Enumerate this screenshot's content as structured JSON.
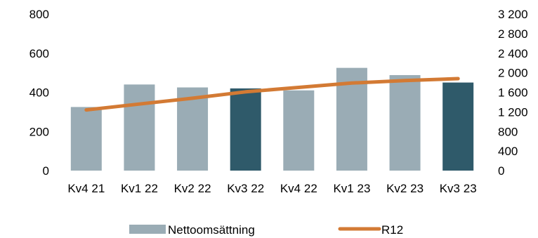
{
  "chart_data": {
    "type": "bar",
    "categories": [
      "Kv4 21",
      "Kv1 22",
      "Kv2 22",
      "Kv3 22",
      "Kv4 22",
      "Kv1 23",
      "Kv2 23",
      "Kv3 23"
    ],
    "series": [
      {
        "name": "Nettoomsättning",
        "type": "bar",
        "axis": "left",
        "values": [
          325,
          440,
          425,
          420,
          410,
          525,
          488,
          450
        ],
        "colors": [
          "#9aacb5",
          "#9aacb5",
          "#9aacb5",
          "#2f5a6a",
          "#9aacb5",
          "#9aacb5",
          "#9aacb5",
          "#2f5a6a"
        ]
      },
      {
        "name": "R12",
        "type": "line",
        "axis": "right",
        "values": [
          1240,
          1360,
          1480,
          1610,
          1700,
          1790,
          1840,
          1880
        ],
        "color": "#d37a34"
      }
    ],
    "yleft": {
      "lim": [
        0,
        800
      ],
      "ticks": [
        0,
        200,
        400,
        600,
        800
      ],
      "tick_labels": [
        "0",
        "200",
        "400",
        "600",
        "800"
      ]
    },
    "yright": {
      "lim": [
        0,
        3200
      ],
      "ticks": [
        0,
        400,
        800,
        1200,
        1600,
        2000,
        2400,
        2800,
        3200
      ],
      "tick_labels": [
        "0",
        "400",
        "800",
        "1 200",
        "1 600",
        "2 000",
        "2 400",
        "2 800",
        "3 200"
      ]
    },
    "grid": false,
    "legend": "bottom",
    "legend_entries": [
      "Nettoomsättning",
      "R12"
    ]
  }
}
